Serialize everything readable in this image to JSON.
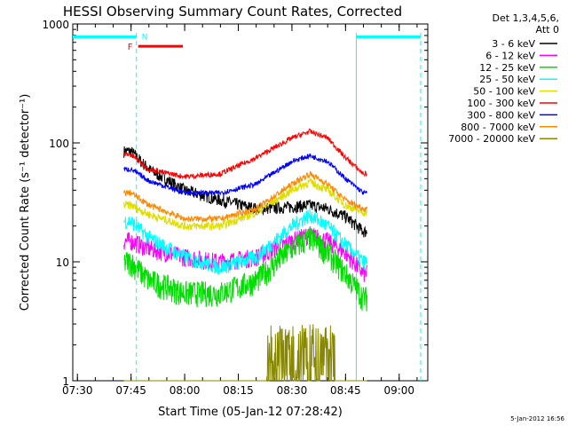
{
  "chart_data": {
    "type": "line",
    "title": "HESSI Observing Summary Count Rates, Corrected",
    "xlabel": "Start Time (05-Jan-12 07:28:42)",
    "ylabel": "Corrected Count Rate (s⁻¹ detector⁻¹)",
    "yscale": "log",
    "ylim": [
      1,
      1000
    ],
    "xlim": [
      "07:28:42",
      "09:08:00"
    ],
    "x_ticks": [
      "07:30",
      "07:45",
      "08:00",
      "08:15",
      "08:30",
      "08:45",
      "09:00"
    ],
    "y_ticks": [
      "1",
      "10",
      "100",
      "1000"
    ],
    "legend": {
      "position": "right",
      "header": [
        "Det 1,3,4,5,6,",
        "Att 0"
      ]
    },
    "x": [
      "07:45",
      "07:50",
      "08:00",
      "08:10",
      "08:20",
      "08:30",
      "08:35",
      "08:40",
      "08:45",
      "08:50"
    ],
    "series": [
      {
        "name": "3 - 6 keV",
        "color": "#000000",
        "values": [
          85,
          60,
          40,
          33,
          28,
          29,
          30,
          28,
          24,
          18
        ]
      },
      {
        "name": "6 - 12 keV",
        "color": "#ff00ff",
        "values": [
          15,
          13,
          11,
          10,
          11,
          15,
          17,
          15,
          12,
          8
        ]
      },
      {
        "name": "12 - 25 keV",
        "color": "#00dd00",
        "values": [
          10,
          7,
          5.5,
          5.5,
          7,
          13,
          16,
          12,
          8,
          5
        ]
      },
      {
        "name": "25 - 50 keV",
        "color": "#00ffff",
        "values": [
          22,
          16,
          11,
          9,
          11,
          20,
          25,
          20,
          14,
          10
        ]
      },
      {
        "name": "50 - 100 keV",
        "color": "#dddd00",
        "values": [
          30,
          25,
          20,
          20,
          26,
          40,
          47,
          40,
          30,
          26
        ]
      },
      {
        "name": "100 - 300 keV",
        "color": "#ff0000",
        "values": [
          80,
          60,
          52,
          55,
          75,
          110,
          125,
          110,
          75,
          55
        ]
      },
      {
        "name": "300 - 800 keV",
        "color": "#0000ff",
        "values": [
          60,
          48,
          38,
          38,
          45,
          70,
          78,
          70,
          50,
          38
        ]
      },
      {
        "name": "800 - 7000 keV",
        "color": "#ff8800",
        "values": [
          38,
          30,
          23,
          23,
          28,
          45,
          55,
          45,
          33,
          28
        ]
      },
      {
        "name": "7000 - 20000 keV",
        "color": "#888800",
        "values": [
          1,
          1,
          1,
          1,
          1,
          2.2,
          2.5,
          2,
          1,
          1
        ]
      }
    ],
    "annotations": {
      "flags": [
        {
          "label": "N",
          "color": "#00ffff"
        },
        {
          "label": "F",
          "color": "#ff0000"
        }
      ],
      "footer": "5-Jan-2012 16:56"
    },
    "colors": {
      "night_markers": "#00ffff",
      "flare_marker": "#ff0000"
    }
  }
}
